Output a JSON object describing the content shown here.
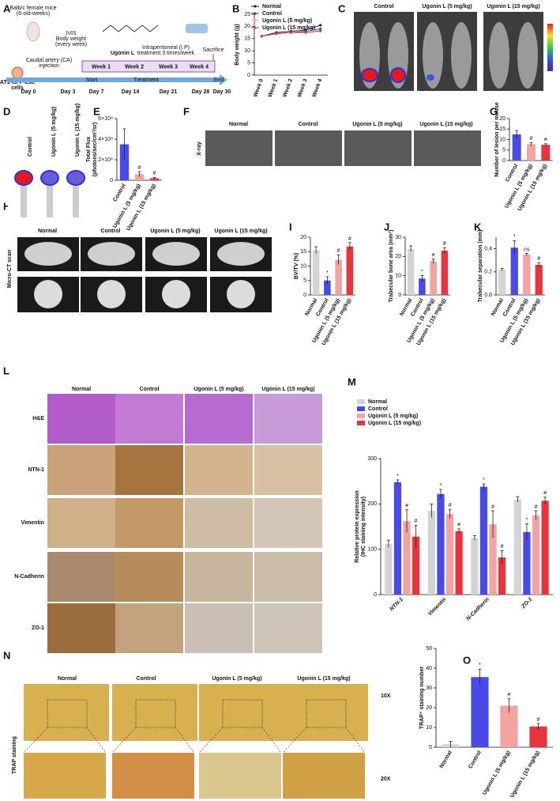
{
  "letters": [
    "A",
    "B",
    "C",
    "D",
    "E",
    "F",
    "G",
    "H",
    "I",
    "J",
    "K",
    "L",
    "M",
    "N",
    "O"
  ],
  "timeline": {
    "mice": "Balb/c female mice",
    "mice_age": "(6-old-weeks)",
    "cells": "AT1-GFP-Luc",
    "cells2": "cells",
    "injection1": "Caudal artery (CA)",
    "injection2": "injection",
    "ivis": "IVIS",
    "bw1": "Body weight",
    "bw2": "(every week)",
    "drug": "Ugonin L",
    "ip1": "Intraperitoneal (I.P)",
    "ip2": "treatment 3 times/week",
    "sacrifice": "Sacrifice",
    "weeks": [
      "Week 1",
      "Week 2",
      "Week 3",
      "Week 4"
    ],
    "days": [
      "Day 0",
      "Day 3",
      "Day 7",
      "Day 14",
      "Day 21",
      "Day 28",
      "Day 30"
    ],
    "phases": [
      "Start",
      "Treatment",
      "End"
    ]
  },
  "panel_c": {
    "labels": [
      "Control",
      "Ugonin L (5 mg/kg)",
      "Ugonin L (15 mg/kg)"
    ]
  },
  "panel_d": {
    "labels": [
      "Control",
      "Ugonin L (5 mg/kg)",
      "Ugonin L (15 mg/kg)"
    ]
  },
  "panel_f": {
    "labels": [
      "Normal",
      "Control",
      "Ugonin L (5 mg/kg)",
      "Ugonin L (15 mg/kg)"
    ],
    "row": "X-ray"
  },
  "panel_h": {
    "labels": [
      "Normal",
      "Control",
      "Ugonin L (5 mg/kg)",
      "Ugonin L (15 mg/kg)"
    ],
    "row": "Micro-CT scan"
  },
  "panel_l": {
    "labels": [
      "Normal",
      "Control",
      "Ugonin L (5 mg/kg)",
      "Ugonin L (15 mg/kg)"
    ],
    "rows": [
      "H&E",
      "NTN-1",
      "Vimentin",
      "N-Cadherin",
      "ZO-1"
    ]
  },
  "panel_n": {
    "labels": [
      "Normal",
      "Control",
      "Ugonin L (5 mg/kg)",
      "Ugonin L (15 mg/kg)"
    ],
    "row": "TRAP staining",
    "mags": [
      "10X",
      "20X"
    ]
  },
  "chart_data": [
    {
      "type": "line",
      "ylabel": [
        "Body weight (g)"
      ],
      "categories": [
        "Week 0",
        "Week 1",
        "Week 2",
        "Week 3",
        "Week 4"
      ],
      "series": [
        {
          "name": "Normal",
          "color": "#222222",
          "values": [
            16,
            17.5,
            18,
            18.5,
            20.5
          ]
        },
        {
          "name": "Control",
          "color": "#3a3ad6",
          "values": [
            16,
            17,
            17.5,
            18,
            19
          ]
        },
        {
          "name": "Ugonin L (5 mg/kg)",
          "color": "#f4a3a3",
          "values": [
            16,
            17,
            17.5,
            17.5,
            18
          ]
        },
        {
          "name": "Ugonin L (15 mg/kg)",
          "color": "#e8343c",
          "values": [
            16,
            17,
            17.5,
            17.5,
            18.2
          ]
        }
      ],
      "ylim": [
        0,
        25
      ],
      "yticks": [
        0,
        5,
        10,
        15,
        20,
        25
      ],
      "legend": "top-left"
    },
    {
      "type": "bar",
      "ylabel": [
        "Total Flux",
        "(photons/sec/cm²/sr)"
      ],
      "categories": [
        "Control",
        "Ugonin L (5 mg/kg)",
        "Ugonin L (15 mg/kg)"
      ],
      "values": [
        350000000,
        60000000,
        20000000
      ],
      "errors": [
        150000000,
        25000000,
        8000000
      ],
      "annotations": [
        null,
        "#",
        "#"
      ],
      "colors": [
        "#4a4ae8",
        "#f4a3a3",
        "#e8343c"
      ],
      "ylim": [
        0,
        600000000
      ],
      "yticks": [
        0,
        {
          "value": 200000000,
          "label": "2×10⁸"
        },
        {
          "value": 400000000,
          "label": "4×10⁸"
        },
        {
          "value": 600000000,
          "label": "6×10⁸"
        }
      ]
    },
    {
      "type": "bar",
      "ylabel": [
        "Number of lesion per mouse"
      ],
      "categories": [
        "Control",
        "Ugonin L (5 mg/kg)",
        "Ugonin L (15 mg/kg)"
      ],
      "values": [
        12.5,
        7.8,
        7.5
      ],
      "errors": [
        1.8,
        0.8,
        0.5
      ],
      "annotations": [
        null,
        "#",
        "#"
      ],
      "colors": [
        "#4a4ae8",
        "#f4a3a3",
        "#e8343c"
      ],
      "ylim": [
        0,
        20
      ],
      "yticks": [
        0,
        5,
        10,
        15,
        20
      ]
    },
    {
      "type": "bar",
      "ylabel": [
        "BV/TV (%)"
      ],
      "categories": [
        "Normal",
        "Control",
        "Ugonin L (5 mg/kg)",
        "Ugonin L (15 mg/kg)"
      ],
      "values": [
        15.5,
        5,
        12.2,
        16.8
      ],
      "errors": [
        1.2,
        1.3,
        1.7,
        1.3
      ],
      "annotations": [
        null,
        "*",
        "#",
        "#"
      ],
      "colors": [
        "#d4d4d4",
        "#4a4ae8",
        "#f4a3a3",
        "#e8343c"
      ],
      "ylim": [
        0,
        20
      ],
      "yticks": [
        0,
        5,
        10,
        15,
        20
      ]
    },
    {
      "type": "bar",
      "ylabel": [
        "Trabecular bone area (mm²)"
      ],
      "categories": [
        "Normal",
        "Control",
        "Ugonin L (5 mg/kg)",
        "Ugonin L (15 mg/kg)"
      ],
      "values": [
        24,
        8.5,
        17.5,
        23
      ],
      "errors": [
        1.5,
        1.6,
        1.2,
        1.6
      ],
      "annotations": [
        null,
        "*",
        "#",
        "#"
      ],
      "colors": [
        "#d4d4d4",
        "#4a4ae8",
        "#f4a3a3",
        "#e8343c"
      ],
      "ylim": [
        0,
        30
      ],
      "yticks": [
        0,
        10,
        20,
        30
      ]
    },
    {
      "type": "bar",
      "ylabel": [
        "Trabecular separation (mm)"
      ],
      "categories": [
        "Normal",
        "Control",
        "Ugonin L (5 mg/kg)",
        "Ugonin L (15 mg/kg)"
      ],
      "values": [
        0.22,
        0.41,
        0.35,
        0.26
      ],
      "errors": [
        0.01,
        0.06,
        0.01,
        0.02
      ],
      "annotations": [
        null,
        "*",
        "ns",
        "#"
      ],
      "colors": [
        "#d4d4d4",
        "#4a4ae8",
        "#f4a3a3",
        "#e8343c"
      ],
      "ylim": [
        0,
        0.5
      ],
      "yticks": [
        {
          "value": 0,
          "label": "0.0"
        },
        0.2,
        0.4
      ]
    },
    {
      "type": "grouped-bar",
      "ylabel": [
        "Relative protein expression",
        "(IHC staining intensity)"
      ],
      "categories": [
        "NTN-1",
        "Vimentin",
        "N-Cadherin",
        "ZO-1"
      ],
      "series": [
        {
          "name": "Normal",
          "color": "#d4d4d4",
          "values": [
            112,
            185,
            125,
            210
          ],
          "errors": [
            8,
            15,
            5,
            6
          ],
          "annotations": [
            null,
            null,
            null,
            null
          ]
        },
        {
          "name": "Control",
          "color": "#4a4ae8",
          "values": [
            248,
            222,
            238,
            138
          ],
          "errors": [
            5,
            10,
            6,
            18
          ],
          "annotations": [
            "*",
            "*",
            "*",
            "*"
          ]
        },
        {
          "name": "Ugonin L (5 mg/kg)",
          "color": "#f4a3a3",
          "values": [
            162,
            178,
            155,
            175
          ],
          "errors": [
            25,
            10,
            30,
            10
          ],
          "annotations": [
            "#",
            "#",
            "#",
            "#"
          ]
        },
        {
          "name": "Ugonin L (15 mg/kg)",
          "color": "#e8343c",
          "values": [
            128,
            140,
            82,
            207
          ],
          "errors": [
            25,
            5,
            15,
            8
          ],
          "annotations": [
            "#",
            "#",
            "#",
            "#"
          ]
        }
      ],
      "ylim": [
        0,
        300
      ],
      "yticks": [
        0,
        100,
        200,
        300
      ],
      "legend": "top-left"
    },
    {
      "type": "bar",
      "ylabel": [
        "TRAP⁺ staining number"
      ],
      "categories": [
        "Normal",
        "Control",
        "Ugonin L (5 mg/kg)",
        "Ugonin L (15 mg/kg)"
      ],
      "values": [
        1.5,
        35.5,
        21,
        10.5
      ],
      "errors": [
        1.5,
        4,
        3.5,
        1.5
      ],
      "annotations": [
        null,
        "*",
        "#",
        "#"
      ],
      "colors": [
        "#d4d4d4",
        "#4a4ae8",
        "#f4a3a3",
        "#e8343c"
      ],
      "ylim": [
        0,
        50
      ],
      "yticks": [
        0,
        10,
        20,
        30,
        40,
        50
      ]
    }
  ]
}
